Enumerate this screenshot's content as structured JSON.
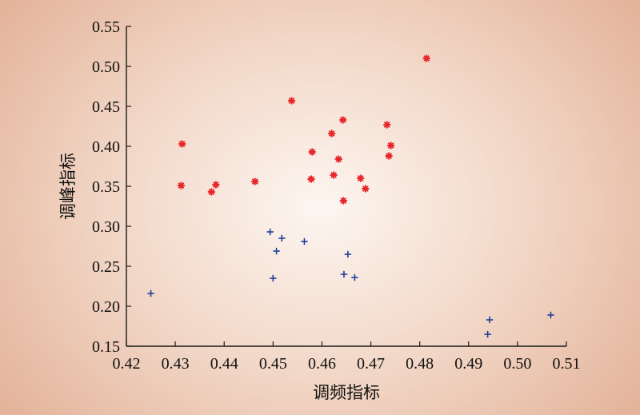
{
  "chart_data": {
    "type": "scatter",
    "xlabel": "调频指标",
    "ylabel": "调峰指标",
    "xlim": [
      0.42,
      0.51
    ],
    "ylim": [
      0.15,
      0.55
    ],
    "x_ticks": [
      "0.42",
      "0.43",
      "0.44",
      "0.45",
      "0.46",
      "0.47",
      "0.48",
      "0.49",
      "0.50",
      "0.51"
    ],
    "y_ticks": [
      "0.15",
      "0.20",
      "0.25",
      "0.30",
      "0.35",
      "0.40",
      "0.45",
      "0.50",
      "0.55"
    ],
    "grid": false,
    "legend": "none",
    "series": [
      {
        "marker": "asterisk",
        "color": "#e8262b",
        "points": [
          [
            0.4314,
            0.403
          ],
          [
            0.4312,
            0.351
          ],
          [
            0.4374,
            0.343
          ],
          [
            0.4383,
            0.352
          ],
          [
            0.4463,
            0.356
          ],
          [
            0.4538,
            0.457
          ],
          [
            0.458,
            0.393
          ],
          [
            0.4578,
            0.359
          ],
          [
            0.462,
            0.416
          ],
          [
            0.4624,
            0.364
          ],
          [
            0.4634,
            0.384
          ],
          [
            0.4643,
            0.433
          ],
          [
            0.4644,
            0.332
          ],
          [
            0.4679,
            0.36
          ],
          [
            0.4689,
            0.347
          ],
          [
            0.4733,
            0.427
          ],
          [
            0.4737,
            0.388
          ],
          [
            0.4741,
            0.401
          ],
          [
            0.4814,
            0.51
          ]
        ]
      },
      {
        "marker": "plus",
        "color": "#1f3d9c",
        "points": [
          [
            0.425,
            0.216
          ],
          [
            0.4494,
            0.293
          ],
          [
            0.45,
            0.235
          ],
          [
            0.4507,
            0.269
          ],
          [
            0.4518,
            0.285
          ],
          [
            0.4564,
            0.281
          ],
          [
            0.4645,
            0.24
          ],
          [
            0.4653,
            0.265
          ],
          [
            0.4667,
            0.236
          ],
          [
            0.4939,
            0.165
          ],
          [
            0.4943,
            0.183
          ],
          [
            0.5068,
            0.189
          ]
        ]
      }
    ]
  }
}
